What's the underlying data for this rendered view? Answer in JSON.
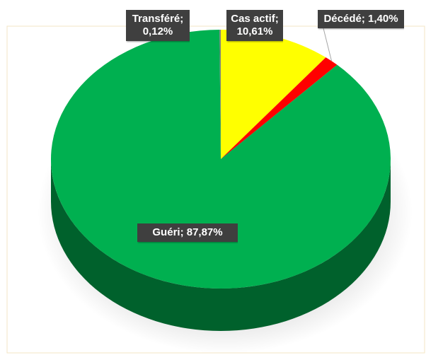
{
  "chart_data": {
    "type": "pie3d",
    "categories": [
      "Cas actif",
      "Décédé",
      "Guéri",
      "Transféré"
    ],
    "values": [
      10.61,
      1.4,
      87.87,
      0.12
    ],
    "value_labels": [
      "Cas actif; 10,61%",
      "Décédé; 1,40%",
      "Guéri; 87,87%",
      "Transféré; 0,12%"
    ],
    "colors": [
      "#ffff00",
      "#ff0000",
      "#00b050",
      "#7f7f7f"
    ]
  }
}
